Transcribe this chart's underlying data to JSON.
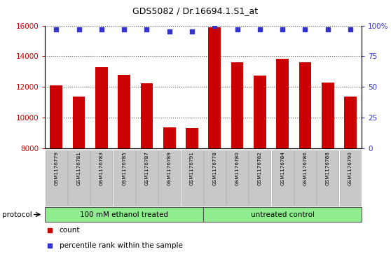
{
  "title": "GDS5082 / Dr.16694.1.S1_at",
  "samples": [
    "GSM1176779",
    "GSM1176781",
    "GSM1176783",
    "GSM1176785",
    "GSM1176787",
    "GSM1176789",
    "GSM1176791",
    "GSM1176778",
    "GSM1176780",
    "GSM1176782",
    "GSM1176784",
    "GSM1176786",
    "GSM1176788",
    "GSM1176790"
  ],
  "counts": [
    12100,
    11350,
    13300,
    12800,
    12250,
    9350,
    9320,
    15900,
    13600,
    12750,
    13850,
    13600,
    12300,
    11350
  ],
  "percentiles": [
    97,
    97,
    97,
    97,
    97,
    95,
    95,
    100,
    97,
    97,
    97,
    97,
    97,
    97
  ],
  "group1_label": "100 mM ethanol treated",
  "group2_label": "untreated control",
  "group1_count": 7,
  "group2_count": 7,
  "bar_color": "#CC0000",
  "dot_color": "#3333CC",
  "ylim_left": [
    8000,
    16000
  ],
  "ylim_right": [
    0,
    100
  ],
  "yticks_left": [
    8000,
    10000,
    12000,
    14000,
    16000
  ],
  "yticks_right": [
    0,
    25,
    50,
    75,
    100
  ],
  "ytick_labels_right": [
    "0",
    "25",
    "50",
    "75",
    "100%"
  ],
  "grid_color": "#555555",
  "group_bg": "#90EE90",
  "xtick_bg": "#C8C8C8",
  "protocol_label": "protocol",
  "legend_count_label": "count",
  "legend_percentile_label": "percentile rank within the sample"
}
